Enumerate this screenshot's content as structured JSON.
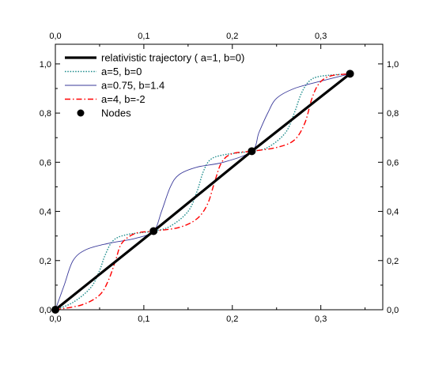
{
  "chart_data": {
    "type": "line",
    "title": "",
    "xlabel": "",
    "ylabel": "",
    "xlim": [
      0.0,
      0.37
    ],
    "ylim": [
      0.0,
      1.08
    ],
    "grid": false,
    "legend_position": "top-left",
    "x_ticks": [
      0.0,
      0.1,
      0.2,
      0.3
    ],
    "y_ticks": [
      0.0,
      0.2,
      0.4,
      0.6,
      0.8,
      1.0
    ],
    "x_tick_labels": [
      "0,0",
      "0,1",
      "0,2",
      "0,3"
    ],
    "y_tick_labels": [
      "0,0",
      "0,2",
      "0,4",
      "0,6",
      "0,8",
      "1,0"
    ],
    "series": [
      {
        "name": "relativistic trajectory ( a=1, b=0)",
        "color": "#000000",
        "style": "solid-thick",
        "x": [
          0.0,
          0.111,
          0.222,
          0.333
        ],
        "y": [
          0.0,
          0.32,
          0.645,
          0.96
        ]
      },
      {
        "name": "a=5, b=0",
        "color": "#1a8a8a",
        "style": "dotted",
        "x": [
          0.0,
          0.02,
          0.04,
          0.05,
          0.056,
          0.065,
          0.08,
          0.111,
          0.13,
          0.15,
          0.16,
          0.167,
          0.175,
          0.19,
          0.222,
          0.24,
          0.26,
          0.27,
          0.278,
          0.287,
          0.3,
          0.333
        ],
        "y": [
          0.0,
          0.03,
          0.09,
          0.16,
          0.22,
          0.28,
          0.305,
          0.32,
          0.34,
          0.4,
          0.48,
          0.56,
          0.61,
          0.63,
          0.645,
          0.66,
          0.72,
          0.8,
          0.88,
          0.93,
          0.95,
          0.96
        ]
      },
      {
        "name": "a=0.75, b=1.4",
        "color": "#3a3a9a",
        "style": "solid-thin",
        "x": [
          0.0,
          0.01,
          0.02,
          0.035,
          0.06,
          0.09,
          0.111,
          0.12,
          0.13,
          0.14,
          0.16,
          0.19,
          0.222,
          0.23,
          0.24,
          0.25,
          0.27,
          0.3,
          0.333
        ],
        "y": [
          0.0,
          0.1,
          0.2,
          0.245,
          0.27,
          0.29,
          0.32,
          0.4,
          0.5,
          0.55,
          0.58,
          0.6,
          0.645,
          0.72,
          0.8,
          0.86,
          0.9,
          0.93,
          0.96
        ]
      },
      {
        "name": "a=4, b=-2",
        "color": "#ff0000",
        "style": "dash-dot",
        "x": [
          0.0,
          0.03,
          0.05,
          0.06,
          0.068,
          0.075,
          0.09,
          0.111,
          0.14,
          0.16,
          0.172,
          0.18,
          0.188,
          0.2,
          0.222,
          0.25,
          0.27,
          0.282,
          0.29,
          0.298,
          0.31,
          0.333
        ],
        "y": [
          0.0,
          0.02,
          0.06,
          0.12,
          0.2,
          0.27,
          0.31,
          0.32,
          0.335,
          0.37,
          0.43,
          0.52,
          0.6,
          0.635,
          0.645,
          0.66,
          0.69,
          0.76,
          0.86,
          0.92,
          0.95,
          0.96
        ]
      }
    ],
    "nodes": {
      "name": "Nodes",
      "color": "#000000",
      "x": [
        0.0,
        0.111,
        0.222,
        0.333
      ],
      "y": [
        0.0,
        0.32,
        0.645,
        0.96
      ]
    }
  }
}
